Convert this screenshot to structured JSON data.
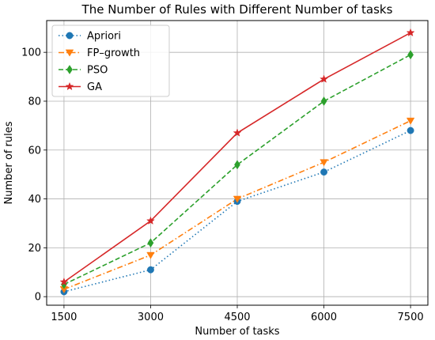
{
  "chart_data": {
    "type": "line",
    "title": "The Number of Rules with Different Number of tasks",
    "xlabel": "Number of tasks",
    "ylabel": "Number of rules",
    "x": [
      1500,
      3000,
      4500,
      6000,
      7500
    ],
    "xticks": [
      "1500",
      "3000",
      "4500",
      "6000",
      "7500"
    ],
    "yticks": [
      "0",
      "20",
      "40",
      "60",
      "80",
      "100"
    ],
    "xlim": [
      1200,
      7800
    ],
    "ylim": [
      -3.5,
      113
    ],
    "grid": true,
    "legend_position": "top-left",
    "series": [
      {
        "name": "Apriori",
        "values": [
          2,
          11,
          39,
          51,
          68
        ],
        "color": "#1f77b4",
        "linestyle": "dotted",
        "marker": "circle"
      },
      {
        "name": "FP–growth",
        "values": [
          3,
          17,
          40,
          55,
          72
        ],
        "color": "#ff7f0e",
        "linestyle": "dashdot",
        "marker": "triangle-down"
      },
      {
        "name": "PSO",
        "values": [
          5,
          22,
          54,
          80,
          99
        ],
        "color": "#2ca02c",
        "linestyle": "dashed",
        "marker": "diamond"
      },
      {
        "name": "GA",
        "values": [
          6,
          31,
          67,
          89,
          108
        ],
        "color": "#d62728",
        "linestyle": "solid",
        "marker": "star"
      }
    ]
  }
}
